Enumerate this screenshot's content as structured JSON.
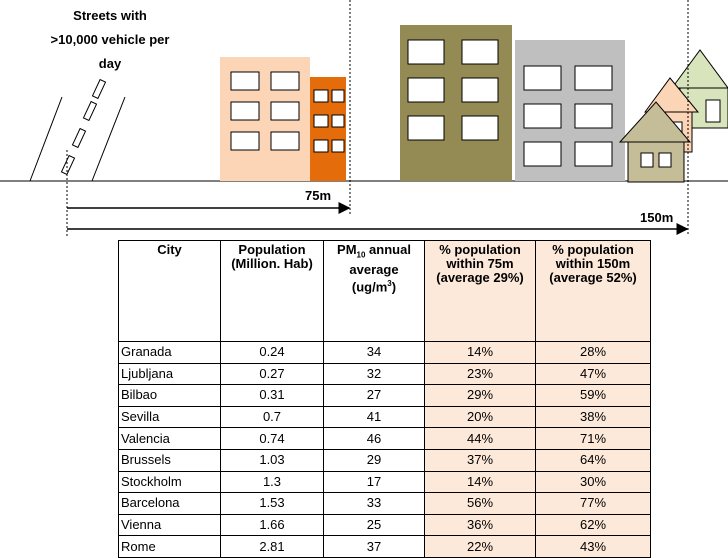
{
  "illustration": {
    "street_label": [
      "Streets with",
      ">10,000 vehicle per",
      "day"
    ],
    "distance_near": "75m",
    "distance_far": "150m"
  },
  "table": {
    "header": [
      {
        "parts": [
          "City"
        ]
      },
      {
        "parts": [
          "Population (Million. Hab)"
        ]
      },
      {
        "parts": [
          "PM",
          "10",
          " annual average (ug/m",
          "3",
          ")"
        ]
      },
      {
        "parts": [
          "% population within 75m (average 29%)"
        ]
      },
      {
        "parts": [
          "% population within 150m (average 52%)"
        ]
      }
    ],
    "rows": [
      [
        "Granada",
        "0.24",
        "34",
        "14%",
        "28%"
      ],
      [
        "Ljubljana",
        "0.27",
        "32",
        "23%",
        "47%"
      ],
      [
        "Bilbao",
        "0.31",
        "27",
        "29%",
        "59%"
      ],
      [
        "Sevilla",
        "0.7",
        "41",
        "20%",
        "38%"
      ],
      [
        "Valencia",
        "0.74",
        "46",
        "44%",
        "71%"
      ],
      [
        "Brussels",
        "1.03",
        "29",
        "37%",
        "64%"
      ],
      [
        "Stockholm",
        "1.3",
        "17",
        "14%",
        "30%"
      ],
      [
        "Barcelona",
        "1.53",
        "33",
        "56%",
        "77%"
      ],
      [
        "Vienna",
        "1.66",
        "25",
        "36%",
        "62%"
      ],
      [
        "Rome",
        "2.81",
        "37",
        "22%",
        "43%"
      ]
    ]
  }
}
